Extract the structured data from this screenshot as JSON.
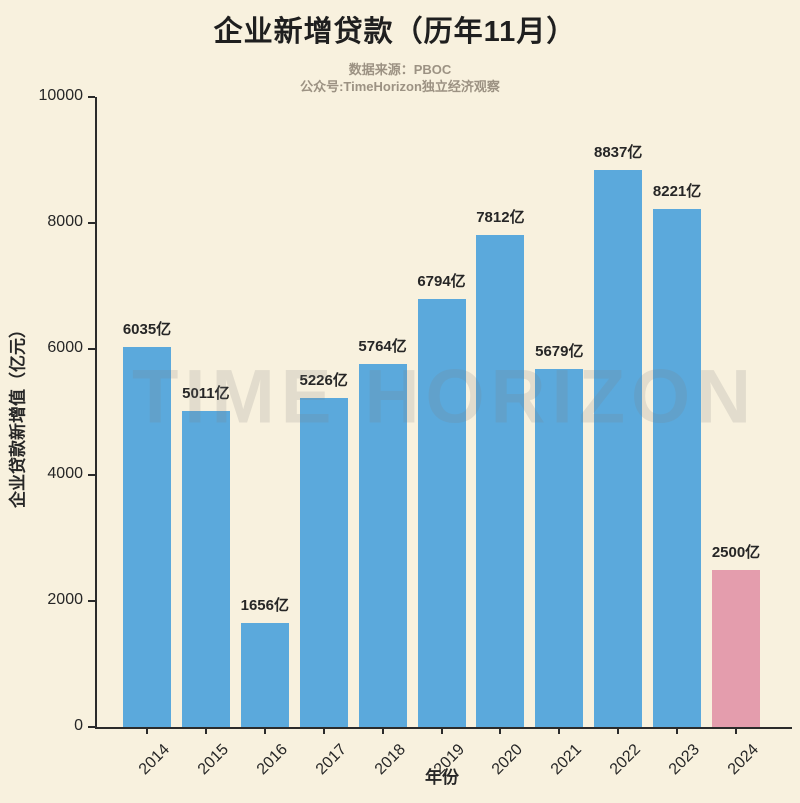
{
  "header": {
    "title": "企业新增贷款（历年11月）",
    "source_line": "数据来源：PBOC",
    "account_line": "公众号:TimeHorizon独立经济观察"
  },
  "watermark_text": "TIME HORIZON",
  "chart_data": {
    "type": "bar",
    "title": "企业新增贷款（历年11月）",
    "categories": [
      "2014",
      "2015",
      "2016",
      "2017",
      "2018",
      "2019",
      "2020",
      "2021",
      "2022",
      "2023",
      "2024"
    ],
    "values": [
      6035,
      5011,
      1656,
      5226,
      5764,
      6794,
      7812,
      5679,
      8837,
      8221,
      2500
    ],
    "bar_labels": [
      "6035亿",
      "5011亿",
      "1656亿",
      "5226亿",
      "5764亿",
      "6794亿",
      "7812亿",
      "5679亿",
      "8837亿",
      "8221亿",
      "2500亿"
    ],
    "xlabel": "年份",
    "ylabel": "企业贷款新增值（亿元）",
    "ylim": [
      0,
      10000
    ],
    "y_ticks": [
      0,
      2000,
      4000,
      6000,
      8000,
      10000
    ],
    "grid": false,
    "legend_position": "none",
    "colors": {
      "bar_default": "#5ba9dc",
      "bar_highlight": "#e49dad",
      "background": "#f8f1de",
      "axis": "#2b2b2b",
      "text": "#262626",
      "subtitle": "#9c9283"
    },
    "highlight_index": 10
  }
}
